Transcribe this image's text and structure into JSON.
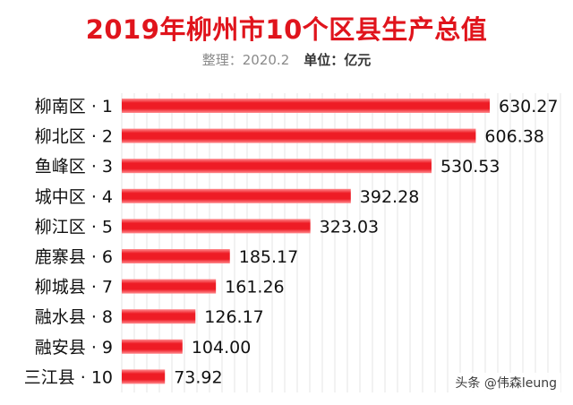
{
  "title": "2019年柳州市10个区县生产总值",
  "subtitle": {
    "source_label": "整理：",
    "date": "2020.2",
    "unit_label": "单位：亿元"
  },
  "watermark": "头条 @伟森leung",
  "colors": {
    "bar": "#ee1c25",
    "bar_light": "#ff8a8e",
    "title": "#e0141c",
    "grid": "#e6e6e6"
  },
  "chart_data": {
    "type": "bar",
    "orientation": "horizontal",
    "title": "2019年柳州市10个区县生产总值",
    "categories": [
      "柳南区 · 1",
      "柳北区 · 2",
      "鱼峰区 · 3",
      "城中区 · 4",
      "柳江区 · 5",
      "鹿寨县 · 6",
      "柳城县 · 7",
      "融水县 · 8",
      "融安县 · 9",
      "三江县 · 10"
    ],
    "values": [
      630.27,
      606.38,
      530.53,
      392.28,
      323.03,
      185.17,
      161.26,
      126.17,
      104.0,
      73.92
    ],
    "value_labels": [
      "630.27",
      "606.38",
      "530.53",
      "392.28",
      "323.03",
      "185.17",
      "161.26",
      "126.17",
      "104.00",
      "73.92"
    ],
    "xlim": [
      0,
      630.27
    ],
    "grid": true,
    "unit": "亿元"
  }
}
